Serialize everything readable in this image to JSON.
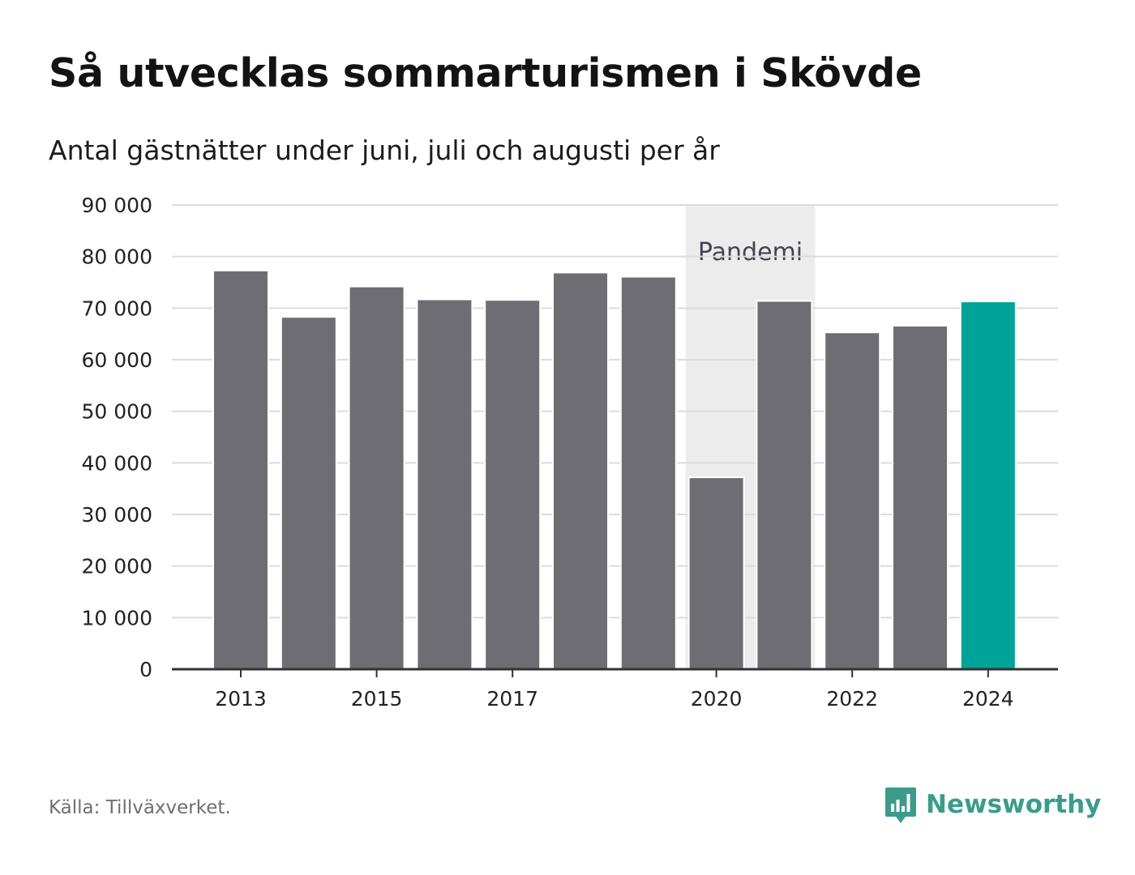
{
  "title": "Så utvecklas sommarturismen i Skövde",
  "subtitle": "Antal gästnätter under juni, juli och augusti per år",
  "source": "Källa: Tillväxverket.",
  "brand": {
    "name": "Newsworthy",
    "icon": "newsworthy-logo-icon"
  },
  "colors": {
    "bar": "#6e6d74",
    "highlight": "#00a398",
    "band": "#ececec",
    "grid": "#dcdcdc",
    "axis": "#333333"
  },
  "chart_data": {
    "type": "bar",
    "categories": [
      "2013",
      "2014",
      "2015",
      "2016",
      "2017",
      "2018",
      "2019",
      "2020",
      "2021",
      "2022",
      "2023",
      "2024"
    ],
    "values": [
      77300,
      68300,
      74200,
      71700,
      71600,
      76900,
      76100,
      37200,
      71400,
      65300,
      66600,
      71300
    ],
    "highlight_category": "2024",
    "x_tick_labels": [
      "2013",
      "2015",
      "2017",
      "2020",
      "2022",
      "2024"
    ],
    "y_ticks": [
      0,
      10000,
      20000,
      30000,
      40000,
      50000,
      60000,
      70000,
      80000,
      90000
    ],
    "y_tick_labels": [
      "0",
      "10 000",
      "20 000",
      "30 000",
      "40 000",
      "50 000",
      "60 000",
      "70 000",
      "80 000",
      "90 000"
    ],
    "ylim": [
      0,
      90000
    ],
    "grid": true,
    "annotations": [
      {
        "label": "Pandemi",
        "from": "2020",
        "to": "2021"
      }
    ]
  }
}
